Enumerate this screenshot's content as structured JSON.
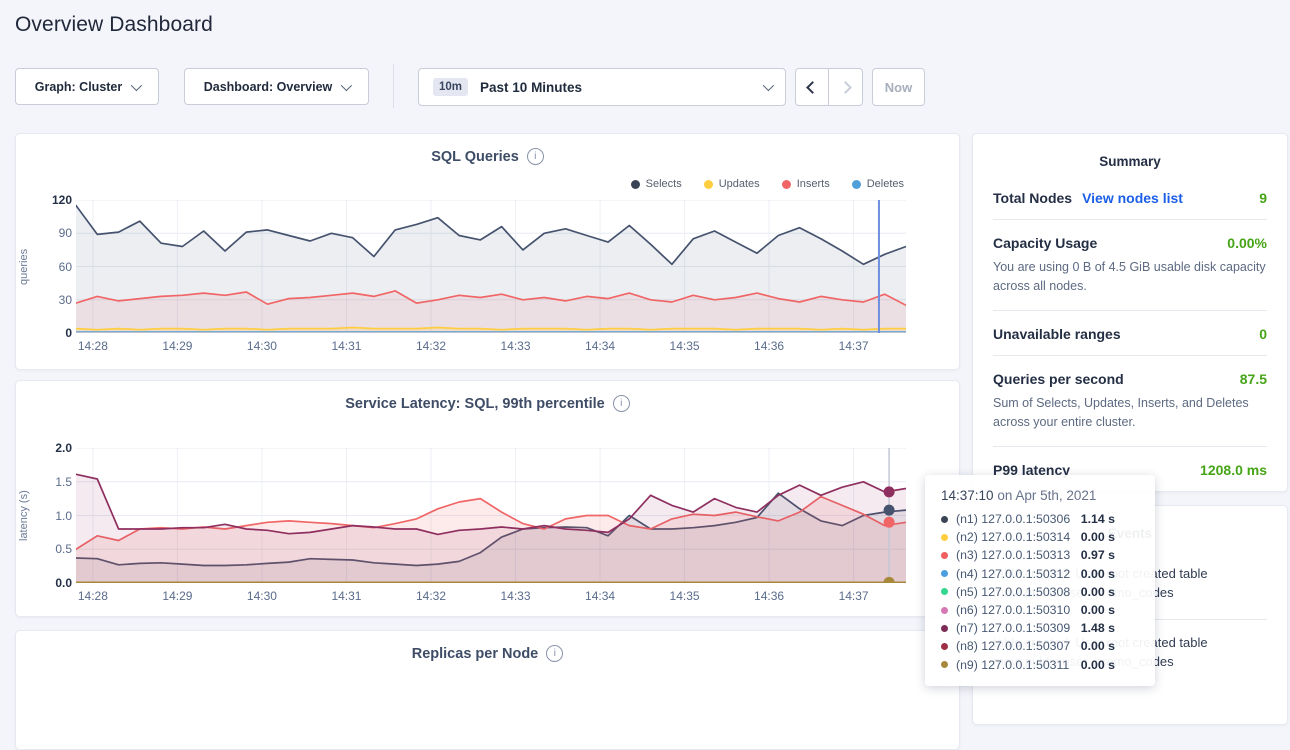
{
  "page": {
    "title": "Overview Dashboard"
  },
  "controls": {
    "graph_dropdown": "Graph: Cluster",
    "dashboard_dropdown": "Dashboard: Overview",
    "time_badge": "10m",
    "time_label": "Past 10 Minutes",
    "prev_icon": "chevron-left",
    "next_icon": "chevron-right",
    "now_button": "Now"
  },
  "chart_data": [
    {
      "type": "area",
      "title": "SQL Queries",
      "ylabel": "queries",
      "ylim": [
        0,
        120
      ],
      "grid": true,
      "legend_position": "top-right",
      "yticks": [
        {
          "v": 0,
          "label": "0",
          "bold": true
        },
        {
          "v": 30,
          "label": "30"
        },
        {
          "v": 60,
          "label": "60"
        },
        {
          "v": 90,
          "label": "90"
        },
        {
          "v": 120,
          "label": "120",
          "bold": true
        }
      ],
      "x_range_minutes": [
        27.8,
        37.62
      ],
      "x_ticks": [
        {
          "m": 28,
          "label": "14:28"
        },
        {
          "m": 29,
          "label": "14:29"
        },
        {
          "m": 30,
          "label": "14:30"
        },
        {
          "m": 31,
          "label": "14:31"
        },
        {
          "m": 32,
          "label": "14:32"
        },
        {
          "m": 33,
          "label": "14:33"
        },
        {
          "m": 34,
          "label": "14:34"
        },
        {
          "m": 35,
          "label": "14:35"
        },
        {
          "m": 36,
          "label": "14:36"
        },
        {
          "m": 37,
          "label": "14:37"
        }
      ],
      "legend": [
        {
          "name": "Selects",
          "color": "#394455"
        },
        {
          "name": "Updates",
          "color": "#ffcd40"
        },
        {
          "name": "Inserts",
          "color": "#f06667"
        },
        {
          "name": "Deletes",
          "color": "#4f9fd9"
        }
      ],
      "series": [
        {
          "name": "Selects",
          "color": "#46536e",
          "fill": "rgba(71,88,114,0.10)",
          "values": [
            115,
            89,
            91,
            101,
            81,
            78,
            92,
            74,
            91,
            93,
            88,
            83,
            90,
            86,
            69,
            93,
            98,
            104,
            88,
            84,
            96,
            75,
            90,
            94,
            88,
            82,
            97,
            80,
            62,
            85,
            92,
            82,
            72,
            88,
            95,
            85,
            74,
            62,
            71,
            78
          ]
        },
        {
          "name": "Inserts",
          "color": "#f06667",
          "fill": "rgba(240,102,103,0.10)",
          "values": [
            27,
            33,
            29,
            31,
            33,
            34,
            36,
            34,
            37,
            26,
            31,
            32,
            34,
            36,
            33,
            38,
            27,
            30,
            34,
            32,
            35,
            30,
            32,
            29,
            33,
            31,
            36,
            30,
            28,
            34,
            30,
            32,
            36,
            31,
            28,
            33,
            30,
            28,
            35,
            25
          ]
        },
        {
          "name": "Updates",
          "color": "#ffcd40",
          "fill": "rgba(255,205,64,0.18)",
          "values": [
            4,
            3,
            4,
            3,
            4,
            4,
            3,
            4,
            4,
            3,
            4,
            4,
            4,
            5,
            4,
            4,
            4,
            5,
            4,
            4,
            3,
            4,
            4,
            4,
            3,
            4,
            4,
            3,
            4,
            4,
            4,
            3,
            4,
            4,
            4,
            3,
            4,
            3,
            4,
            4
          ]
        },
        {
          "name": "Deletes",
          "color": "#4f9fd9",
          "value": 1,
          "count": 40
        }
      ],
      "crosshair": {
        "minute": 37.3,
        "color": "#6d8fdd",
        "width": 2
      },
      "baseline_color": "#b9c2d0"
    },
    {
      "type": "line",
      "title": "Service Latency: SQL, 99th percentile",
      "ylabel": "latency (s)",
      "ylim": [
        0,
        2
      ],
      "grid": true,
      "yticks": [
        {
          "v": 0,
          "label": "0.0",
          "bold": true
        },
        {
          "v": 0.5,
          "label": "0.5"
        },
        {
          "v": 1.0,
          "label": "1.0"
        },
        {
          "v": 1.5,
          "label": "1.5"
        },
        {
          "v": 2.0,
          "label": "2.0",
          "bold": true
        }
      ],
      "x_range_minutes": [
        27.8,
        37.62
      ],
      "x_ticks": [
        {
          "m": 28,
          "label": "14:28"
        },
        {
          "m": 29,
          "label": "14:29"
        },
        {
          "m": 30,
          "label": "14:30"
        },
        {
          "m": 31,
          "label": "14:31"
        },
        {
          "m": 32,
          "label": "14:32"
        },
        {
          "m": 33,
          "label": "14:33"
        },
        {
          "m": 34,
          "label": "14:34"
        },
        {
          "m": 35,
          "label": "14:35"
        },
        {
          "m": 36,
          "label": "14:36"
        },
        {
          "m": 37,
          "label": "14:37"
        }
      ],
      "series": [
        {
          "name": "(n1) 127.0.0.1:50306",
          "color": "#46536e",
          "fill": "rgba(71,88,114,0.10)",
          "values": [
            0.37,
            0.36,
            0.27,
            0.29,
            0.3,
            0.28,
            0.26,
            0.26,
            0.27,
            0.29,
            0.31,
            0.36,
            0.35,
            0.34,
            0.3,
            0.28,
            0.26,
            0.28,
            0.32,
            0.45,
            0.68,
            0.8,
            0.82,
            0.83,
            0.82,
            0.7,
            1.0,
            0.8,
            0.8,
            0.82,
            0.85,
            0.9,
            0.97,
            1.33,
            1.1,
            0.92,
            0.85,
            1.0,
            1.05,
            1.08
          ]
        },
        {
          "name": "(n3) 127.0.0.1:50313",
          "color": "#f06667",
          "fill": "rgba(240,102,103,0.13)",
          "values": [
            0.5,
            0.7,
            0.63,
            0.8,
            0.82,
            0.8,
            0.83,
            0.8,
            0.85,
            0.9,
            0.92,
            0.9,
            0.88,
            0.85,
            0.82,
            0.88,
            0.95,
            1.1,
            1.2,
            1.25,
            1.05,
            0.88,
            0.8,
            0.95,
            1.0,
            1.0,
            0.85,
            0.8,
            0.95,
            1.02,
            1.0,
            1.05,
            0.98,
            0.92,
            1.05,
            1.28,
            1.15,
            1.02,
            0.85,
            0.9
          ]
        },
        {
          "name": "(n7) 127.0.0.1:50309",
          "color": "#8e2f5f",
          "fill": "rgba(143,47,95,0.10)",
          "values": [
            1.61,
            1.54,
            0.8,
            0.8,
            0.8,
            0.82,
            0.82,
            0.87,
            0.8,
            0.78,
            0.73,
            0.75,
            0.8,
            0.85,
            0.83,
            0.8,
            0.8,
            0.72,
            0.78,
            0.8,
            0.83,
            0.8,
            0.85,
            0.8,
            0.78,
            0.75,
            0.95,
            1.3,
            1.15,
            1.05,
            1.25,
            1.12,
            1.05,
            1.3,
            1.45,
            1.3,
            1.42,
            1.5,
            1.35,
            1.4
          ]
        },
        {
          "name": "(n9) 127.0.0.1:50311",
          "color": "#a8893c",
          "value": 0.01,
          "count": 40
        }
      ],
      "crosshair": {
        "minute": 37.42,
        "color": "#c4c8d4",
        "width": 1.5
      },
      "dots": [
        {
          "v": 1.35,
          "color": "#8e2f5f"
        },
        {
          "v": 1.08,
          "color": "#46536e"
        },
        {
          "v": 0.9,
          "color": "#f06667"
        },
        {
          "v": 0.01,
          "color": "#a8893c"
        }
      ],
      "baseline_color": "#a8893c"
    },
    {
      "type": "line",
      "title": "Replicas per Node",
      "note": "chart body cut off at bottom of viewport"
    }
  ],
  "tooltip": {
    "time": "14:37:10",
    "date": " on Apr 5th, 2021",
    "rows": [
      {
        "color": "#394455",
        "label": "(n1) 127.0.0.1:50306",
        "value": "1.14 s"
      },
      {
        "color": "#ffcd40",
        "label": "(n2) 127.0.0.1:50314",
        "value": "0.00 s"
      },
      {
        "color": "#f05f5f",
        "label": "(n3) 127.0.0.1:50313",
        "value": "0.97 s"
      },
      {
        "color": "#4a9edd",
        "label": "(n4) 127.0.0.1:50312",
        "value": "0.00 s"
      },
      {
        "color": "#35d690",
        "label": "(n5) 127.0.0.1:50308",
        "value": "0.00 s"
      },
      {
        "color": "#d678b4",
        "label": "(n6) 127.0.0.1:50310",
        "value": "0.00 s"
      },
      {
        "color": "#7e2b55",
        "label": "(n7) 127.0.0.1:50309",
        "value": "1.48 s"
      },
      {
        "color": "#9e2f44",
        "label": "(n8) 127.0.0.1:50307",
        "value": "0.00 s"
      },
      {
        "color": "#a8893c",
        "label": "(n9) 127.0.0.1:50311",
        "value": "0.00 s"
      }
    ]
  },
  "summary": {
    "header": "Summary",
    "rows": [
      {
        "label": "Total Nodes",
        "link": "View nodes list",
        "value": "9"
      },
      {
        "label": "Capacity Usage",
        "value": "0.00%",
        "desc": "You are using 0 B of 4.5 GiB usable disk capacity across all nodes."
      },
      {
        "label": "Unavailable ranges",
        "value": "0"
      },
      {
        "label": "Queries per second",
        "value": "87.5",
        "desc": "Sum of Selects, Updates, Inserts, and Deletes across your entire cluster."
      },
      {
        "label": "P99 latency",
        "value": "1208.0 ms"
      }
    ]
  },
  "events": {
    "header": "Events",
    "items": [
      {
        "text": "table created: User root created table movr.public.user_promo_codes"
      },
      {
        "text": "table created: User root created table movr.public.user_promo_codes"
      }
    ]
  },
  "colors": {
    "accent_green": "#46a417",
    "link_blue": "#1b5ee8",
    "page_bg": "#f4f5fa",
    "grid": "#e8ebf3"
  }
}
